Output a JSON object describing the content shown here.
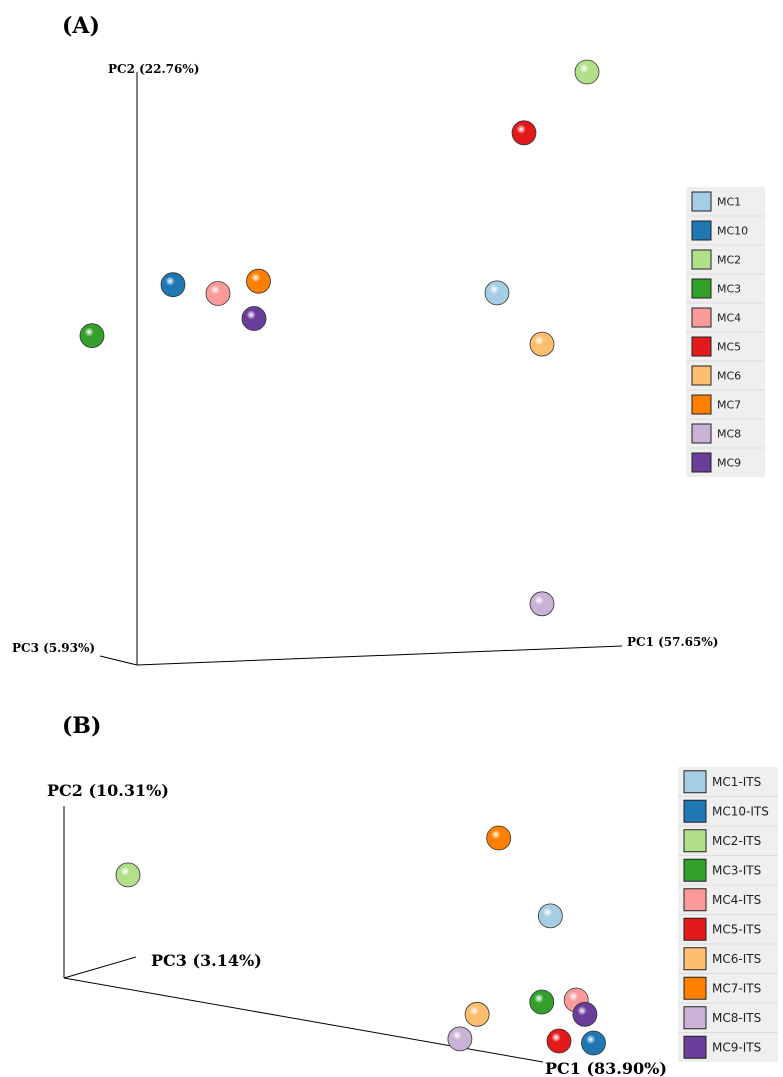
{
  "colors": {
    "MC1": "#a6cee3",
    "MC10": "#1f78b4",
    "MC2": "#b2df8a",
    "MC3": "#33a02c",
    "MC4": "#fb9a99",
    "MC5": "#e31a1c",
    "MC6": "#fdbf6f",
    "MC7": "#ff7f00",
    "MC8": "#cab2d6",
    "MC9": "#6a3d9a"
  },
  "chart_data": [
    {
      "panel": "(A)",
      "type": "scatter",
      "projection": "3d-pcoa",
      "axes": {
        "x": "PC1 (57.65%)",
        "y": "PC2 (22.76%)",
        "z": "PC3 (5.93%)"
      },
      "legend": [
        "MC1",
        "MC10",
        "MC2",
        "MC3",
        "MC4",
        "MC5",
        "MC6",
        "MC7",
        "MC8",
        "MC9"
      ],
      "legend_position": "right",
      "points": [
        {
          "label": "MC1",
          "pc1": 0.8,
          "pc2": 0.59
        },
        {
          "label": "MC10",
          "pc1": 0.08,
          "pc2": 0.63
        },
        {
          "label": "MC2",
          "pc1": 1.0,
          "pc2": 1.0
        },
        {
          "label": "MC3",
          "pc1": -0.1,
          "pc2": 0.54
        },
        {
          "label": "MC4",
          "pc1": 0.18,
          "pc2": 0.61
        },
        {
          "label": "MC5",
          "pc1": 0.86,
          "pc2": 0.89
        },
        {
          "label": "MC6",
          "pc1": 0.9,
          "pc2": 0.49
        },
        {
          "label": "MC7",
          "pc1": 0.27,
          "pc2": 0.63
        },
        {
          "label": "MC8",
          "pc1": 0.9,
          "pc2": 0.0
        },
        {
          "label": "MC9",
          "pc1": 0.26,
          "pc2": 0.56
        }
      ]
    },
    {
      "panel": "(B)",
      "type": "scatter",
      "projection": "3d-pcoa",
      "axes": {
        "x": "PC1 (83.90%)",
        "y": "PC2 (10.31%)",
        "z": "PC3 (3.14%)"
      },
      "legend": [
        "MC1-ITS",
        "MC10-ITS",
        "MC2-ITS",
        "MC3-ITS",
        "MC4-ITS",
        "MC5-ITS",
        "MC6-ITS",
        "MC7-ITS",
        "MC8-ITS",
        "MC9-ITS"
      ],
      "legend_position": "right",
      "points": [
        {
          "label": "MC1-ITS",
          "pc1": 0.98,
          "pc2": 0.62
        },
        {
          "label": "MC10-ITS",
          "pc1": 1.08,
          "pc2": 0.0
        },
        {
          "label": "MC2-ITS",
          "pc1": 0.0,
          "pc2": 0.82
        },
        {
          "label": "MC3-ITS",
          "pc1": 0.96,
          "pc2": 0.2
        },
        {
          "label": "MC4-ITS",
          "pc1": 1.04,
          "pc2": 0.21
        },
        {
          "label": "MC5-ITS",
          "pc1": 1.0,
          "pc2": 0.01
        },
        {
          "label": "MC6-ITS",
          "pc1": 0.81,
          "pc2": 0.14
        },
        {
          "label": "MC7-ITS",
          "pc1": 0.86,
          "pc2": 1.0
        },
        {
          "label": "MC8-ITS",
          "pc1": 0.77,
          "pc2": 0.02
        },
        {
          "label": "MC9-ITS",
          "pc1": 1.06,
          "pc2": 0.14
        }
      ]
    }
  ]
}
